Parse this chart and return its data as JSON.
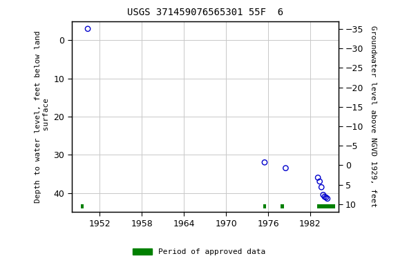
{
  "title": "USGS 371459076565301 55F  6",
  "ylabel_left": "Depth to water level, feet below land\n surface",
  "ylabel_right": "Groundwater level above NGVD 1929, feet",
  "xlim": [
    1948.0,
    1986.0
  ],
  "ylim_left": [
    -5,
    45
  ],
  "ylim_right": [
    12,
    -37
  ],
  "xticks": [
    1952,
    1958,
    1964,
    1970,
    1976,
    1982
  ],
  "yticks_left": [
    0,
    10,
    20,
    30,
    40
  ],
  "yticks_right": [
    10,
    5,
    0,
    -5,
    -10,
    -15,
    -20,
    -25,
    -30,
    -35
  ],
  "scatter_x": [
    1950.3,
    1975.5,
    1978.5,
    1983.1,
    1983.35,
    1983.6,
    1983.85,
    1984.05,
    1984.25,
    1984.45
  ],
  "scatter_y": [
    -3.0,
    32.0,
    33.5,
    36.0,
    37.0,
    38.5,
    40.5,
    41.0,
    41.2,
    41.5
  ],
  "scatter_color": "#0000cc",
  "green_bars": [
    {
      "x_start": 1949.3,
      "x_end": 1949.7
    },
    {
      "x_start": 1975.3,
      "x_end": 1975.7
    },
    {
      "x_start": 1977.8,
      "x_end": 1978.3
    },
    {
      "x_start": 1983.0,
      "x_end": 1985.5
    }
  ],
  "green_bar_y": 43.5,
  "green_bar_height": 1.2,
  "green_color": "#008000",
  "bg_color": "#ffffff",
  "grid_color": "#c8c8c8",
  "title_fontsize": 10,
  "axis_fontsize": 8,
  "tick_fontsize": 9
}
